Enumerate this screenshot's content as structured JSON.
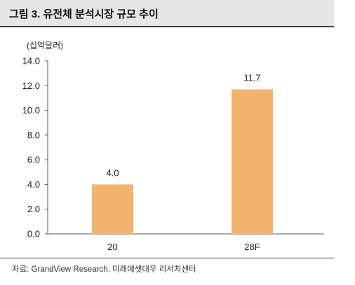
{
  "title": "그림 3. 유전체 분석시장 규모 추이",
  "source": "자료: GrandView Research, 미래에셋대우 리서치센터",
  "chart_data": {
    "type": "bar",
    "unit_label": "(십억달러)",
    "categories": [
      "20",
      "28F"
    ],
    "values": [
      4.0,
      11.7
    ],
    "data_labels": [
      "4.0",
      "11.7"
    ],
    "y_ticks": [
      "0.0",
      "2.0",
      "4.0",
      "6.0",
      "8.0",
      "10.0",
      "12.0",
      "14.0"
    ],
    "ylim": [
      0,
      14
    ],
    "bar_color": "#f2b36e",
    "grid": false
  }
}
